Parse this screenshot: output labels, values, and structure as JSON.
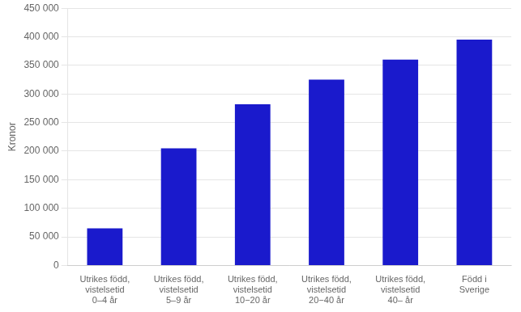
{
  "chart_data": {
    "type": "bar",
    "ylabel": "Kronor",
    "categories": [
      "Utrikes född,\nvistelsetid\n0–4 år",
      "Utrikes född,\nvistelsetid\n5–9 år",
      "Utrikes född,\nvistelsetid\n10−20 år",
      "Utrikes född,\nvistelsetid\n20−40 år",
      "Utrikes född,\nvistelsetid\n40– år",
      "Född i\nSverige"
    ],
    "values": [
      65000,
      205000,
      282000,
      325000,
      360000,
      395000
    ],
    "color": "#1a1acc",
    "ylim": [
      0,
      450000
    ],
    "yticks": [
      0,
      {
        "value": 50000,
        "label": "50 000"
      },
      {
        "value": 100000,
        "label": "100 000"
      },
      {
        "value": 150000,
        "label": "150 000"
      },
      {
        "value": 200000,
        "label": "200 000"
      },
      {
        "value": 250000,
        "label": "250 000"
      },
      {
        "value": 300000,
        "label": "300 000"
      },
      {
        "value": 350000,
        "label": "350 000"
      },
      {
        "value": 400000,
        "label": "400 000"
      },
      {
        "value": 450000,
        "label": "450 000"
      }
    ],
    "grid": true
  }
}
